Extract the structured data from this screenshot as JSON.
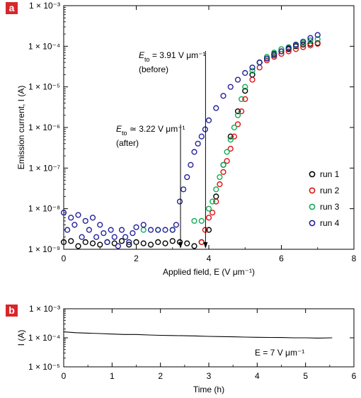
{
  "chart_data": [
    {
      "panel": "a",
      "type": "scatter",
      "xlabel": "Applied field, E (V μm⁻¹)",
      "ylabel": "Emission current, I (A)",
      "xlim": [
        0,
        8
      ],
      "ylim": [
        1e-09,
        0.001
      ],
      "yscale": "log",
      "xticks": [
        "0",
        "2",
        "4",
        "6",
        "8"
      ],
      "yticks": [
        "1 × 10⁻⁹",
        "1 × 10⁻⁸",
        "1 × 10⁻⁷",
        "1 × 10⁻⁶",
        "1 × 10⁻⁵",
        "1 × 10⁻⁴",
        "1 × 10⁻³"
      ],
      "legend_position": "right",
      "annotations": [
        {
          "line1": "E",
          "sub": "to",
          "rest": " = 3.91 V μm⁻¹",
          "line2": "(before)",
          "arrow_x": 3.91
        },
        {
          "line1": "E",
          "sub": "to",
          "rest": " ≃ 3.22 V μm⁻¹",
          "line2": "(after)",
          "arrow_x": 3.22
        }
      ],
      "series": [
        {
          "name": "run 1",
          "color": "#000000",
          "x": [
            0.0,
            0.2,
            0.4,
            0.6,
            0.8,
            1.0,
            1.2,
            1.4,
            1.6,
            1.8,
            2.0,
            2.2,
            2.4,
            2.6,
            2.8,
            3.0,
            3.2,
            3.4,
            3.6,
            3.8,
            4.0,
            4.2,
            4.4,
            4.6,
            4.8,
            5.0,
            5.2,
            5.4,
            5.6,
            5.8,
            6.0,
            6.2,
            6.4,
            6.6,
            6.8,
            7.0
          ],
          "y": [
            1.5e-09,
            1.6e-09,
            1.2e-09,
            1.5e-09,
            1.4e-09,
            1.3e-09,
            1.5e-09,
            1.4e-09,
            1.6e-09,
            1.3e-09,
            1.5e-09,
            1.4e-09,
            1.3e-09,
            1.5e-09,
            1.4e-09,
            1.6e-09,
            1.5e-09,
            1.4e-09,
            1.2e-09,
            1.5e-09,
            3e-09,
            2e-08,
            1.2e-07,
            6e-07,
            2.5e-06,
            8e-06,
            2e-05,
            4e-05,
            5e-05,
            6.5e-05,
            7.5e-05,
            8.5e-05,
            0.0001,
            0.00011,
            0.000115,
            0.00012
          ]
        },
        {
          "name": "run 2",
          "color": "#dd1111",
          "x": [
            3.8,
            3.9,
            4.0,
            4.1,
            4.2,
            4.3,
            4.4,
            4.5,
            4.6,
            4.7,
            4.8,
            4.9,
            5.0,
            5.2,
            5.4,
            5.6,
            5.8,
            6.0,
            6.2,
            6.4,
            6.6,
            6.8,
            7.0
          ],
          "y": [
            1.5e-09,
            3e-09,
            6e-09,
            8e-09,
            1.5e-08,
            4e-08,
            8e-08,
            1.5e-07,
            3e-07,
            6e-07,
            1.2e-06,
            2.5e-06,
            5e-06,
            1.5e-05,
            3e-05,
            4.5e-05,
            5.5e-05,
            6.5e-05,
            7.5e-05,
            8.5e-05,
            9.5e-05,
            0.000105,
            0.000115
          ]
        },
        {
          "name": "run 3",
          "color": "#11aa55",
          "x": [
            2.2,
            2.6,
            3.0,
            3.6,
            3.8,
            4.0,
            4.1,
            4.2,
            4.3,
            4.4,
            4.5,
            4.6,
            4.7,
            4.8,
            4.9,
            5.0,
            5.2,
            5.4,
            5.6,
            5.8,
            6.0,
            6.2,
            6.4,
            6.6,
            6.8,
            7.0
          ],
          "y": [
            3e-09,
            3e-09,
            3e-09,
            5e-09,
            5e-09,
            1e-08,
            1.5e-08,
            3e-08,
            6e-08,
            1.2e-07,
            2.5e-07,
            5e-07,
            1e-06,
            2e-06,
            5e-06,
            1e-05,
            2.5e-05,
            4e-05,
            5.5e-05,
            7e-05,
            8.5e-05,
            9.5e-05,
            0.000105,
            0.00012,
            0.00014,
            0.00015
          ]
        },
        {
          "name": "run 4",
          "color": "#222299",
          "x": [
            0.0,
            0.1,
            0.2,
            0.3,
            0.4,
            0.5,
            0.6,
            0.7,
            0.8,
            0.9,
            1.0,
            1.1,
            1.2,
            1.3,
            1.4,
            1.5,
            1.6,
            1.7,
            1.8,
            1.9,
            2.0,
            2.2,
            2.4,
            2.6,
            2.8,
            3.0,
            3.1,
            3.2,
            3.3,
            3.4,
            3.5,
            3.6,
            3.7,
            3.8,
            3.9,
            4.0,
            4.2,
            4.4,
            4.6,
            4.8,
            5.0,
            5.2,
            5.4,
            5.6,
            5.8,
            6.0,
            6.2,
            6.4,
            6.6,
            6.8,
            7.0
          ],
          "y": [
            8e-09,
            3e-09,
            6e-09,
            4e-09,
            7e-09,
            2e-09,
            5e-09,
            3e-09,
            6e-09,
            2e-09,
            4e-09,
            2.5e-09,
            1.5e-09,
            3e-09,
            2e-09,
            1.2e-09,
            3e-09,
            2e-09,
            1.5e-09,
            2.5e-09,
            3.5e-09,
            4e-09,
            3e-09,
            3e-09,
            3e-09,
            3e-09,
            4e-09,
            1.5e-08,
            3e-08,
            6e-08,
            1.2e-07,
            2.5e-07,
            4e-07,
            6e-07,
            9e-07,
            1.5e-06,
            3e-06,
            6e-06,
            1e-05,
            1.5e-05,
            2.2e-05,
            3e-05,
            4e-05,
            5e-05,
            6e-05,
            7.5e-05,
            9e-05,
            0.00011,
            0.00013,
            0.00016,
            0.00019
          ]
        }
      ]
    },
    {
      "panel": "b",
      "type": "line",
      "xlabel": "Time (h)",
      "ylabel": "I (A)",
      "xlim": [
        0,
        6
      ],
      "ylim": [
        1e-05,
        0.001
      ],
      "yscale": "log",
      "xticks": [
        "0",
        "1",
        "2",
        "3",
        "4",
        "5",
        "6"
      ],
      "yticks": [
        "1 × 10⁻⁵",
        "1 × 10⁻⁴",
        "1 × 10⁻³"
      ],
      "annotation": "E = 7 V μm⁻¹",
      "series": [
        {
          "color": "#000000",
          "x": [
            0,
            0.25,
            0.5,
            0.75,
            1.0,
            1.25,
            1.5,
            1.75,
            2.0,
            2.25,
            2.5,
            2.75,
            3.0,
            3.25,
            3.5,
            3.75,
            4.0,
            4.25,
            4.5,
            4.75,
            5.0,
            5.25,
            5.55
          ],
          "y": [
            0.00016,
            0.00015,
            0.000145,
            0.00014,
            0.000135,
            0.00013,
            0.00013,
            0.000125,
            0.000122,
            0.00012,
            0.000118,
            0.000116,
            0.000112,
            0.00011,
            0.000108,
            0.000106,
            0.000104,
            0.000103,
            0.000102,
            0.0001,
            0.0001,
            9.8e-05,
            0.0001
          ]
        }
      ]
    }
  ]
}
